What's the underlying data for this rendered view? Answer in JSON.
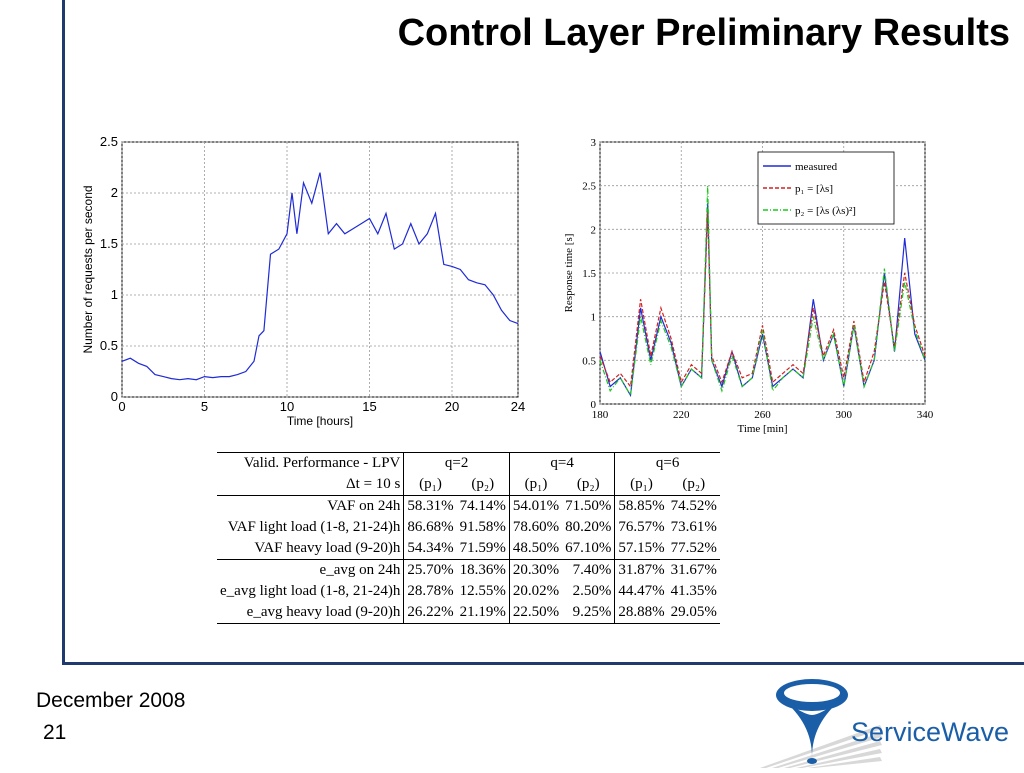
{
  "slide": {
    "title": "Control Layer Preliminary Results",
    "footer_date": "December 2008",
    "page_number": "21",
    "logo_text": "ServiceWave",
    "colors": {
      "frame": "#1f3a6e",
      "logo_blue": "#1a5ea8"
    }
  },
  "chart_data": [
    {
      "type": "line",
      "xlabel": "Time [hours]",
      "ylabel": "Number of requests per second",
      "xlim": [
        0,
        24
      ],
      "ylim": [
        0,
        2.5
      ],
      "xticks": [
        0,
        5,
        10,
        15,
        20,
        24
      ],
      "yticks": [
        0,
        0.5,
        1,
        1.5,
        2,
        2.5
      ],
      "grid": true,
      "series": [
        {
          "color": "#1f2bd6",
          "x": [
            0,
            0.5,
            1,
            1.5,
            2,
            2.5,
            3,
            3.5,
            4,
            4.5,
            5,
            5.5,
            6,
            6.5,
            7,
            7.5,
            8,
            8.3,
            8.6,
            9,
            9.5,
            10,
            10.3,
            10.6,
            11,
            11.5,
            12,
            12.5,
            13,
            13.5,
            14,
            14.5,
            15,
            15.5,
            16,
            16.5,
            17,
            17.5,
            18,
            18.5,
            19,
            19.5,
            20,
            20.5,
            21,
            21.5,
            22,
            22.5,
            23,
            23.5,
            24
          ],
          "y": [
            0.35,
            0.38,
            0.33,
            0.3,
            0.22,
            0.2,
            0.18,
            0.17,
            0.18,
            0.17,
            0.2,
            0.19,
            0.2,
            0.2,
            0.22,
            0.25,
            0.35,
            0.6,
            0.65,
            1.4,
            1.45,
            1.6,
            2.0,
            1.6,
            2.1,
            1.9,
            2.2,
            1.6,
            1.7,
            1.6,
            1.65,
            1.7,
            1.75,
            1.6,
            1.8,
            1.45,
            1.5,
            1.7,
            1.5,
            1.6,
            1.8,
            1.3,
            1.28,
            1.25,
            1.15,
            1.12,
            1.1,
            1.0,
            0.85,
            0.75,
            0.72
          ]
        }
      ]
    },
    {
      "type": "line",
      "xlabel": "Time [min]",
      "ylabel": "Response time [s]",
      "xlim": [
        180,
        340
      ],
      "ylim": [
        0,
        3
      ],
      "xticks": [
        180,
        220,
        260,
        300,
        340
      ],
      "yticks": [
        0,
        0.5,
        1,
        1.5,
        2,
        2.5,
        3
      ],
      "grid": true,
      "legend_position": "top-right",
      "series": [
        {
          "name": "measured",
          "color": "#1f2bd6",
          "x": [
            180,
            185,
            190,
            195,
            200,
            205,
            210,
            215,
            220,
            225,
            230,
            233,
            235,
            240,
            245,
            250,
            255,
            260,
            265,
            270,
            275,
            280,
            285,
            290,
            295,
            300,
            305,
            310,
            315,
            320,
            325,
            330,
            335,
            340
          ],
          "y": [
            0.6,
            0.2,
            0.3,
            0.1,
            1.1,
            0.5,
            1.0,
            0.7,
            0.2,
            0.4,
            0.3,
            2.3,
            0.5,
            0.2,
            0.6,
            0.2,
            0.3,
            0.8,
            0.2,
            0.3,
            0.4,
            0.3,
            1.2,
            0.5,
            0.8,
            0.2,
            0.9,
            0.2,
            0.5,
            1.5,
            0.6,
            1.9,
            0.8,
            0.5
          ]
        },
        {
          "name": "p₁ = [λs]",
          "color": "#d42020",
          "x": [
            180,
            185,
            190,
            195,
            200,
            205,
            210,
            215,
            220,
            225,
            230,
            233,
            235,
            240,
            245,
            250,
            255,
            260,
            265,
            270,
            275,
            280,
            285,
            290,
            295,
            300,
            305,
            310,
            315,
            320,
            325,
            330,
            335,
            340
          ],
          "y": [
            0.55,
            0.25,
            0.35,
            0.2,
            1.2,
            0.55,
            1.1,
            0.75,
            0.25,
            0.45,
            0.35,
            2.2,
            0.55,
            0.25,
            0.6,
            0.3,
            0.35,
            0.9,
            0.25,
            0.35,
            0.45,
            0.35,
            1.1,
            0.55,
            0.85,
            0.3,
            0.95,
            0.25,
            0.6,
            1.4,
            0.65,
            1.5,
            0.9,
            0.55
          ]
        },
        {
          "name": "p₂ = [λs   (λs)²]",
          "color": "#1ec81e",
          "x": [
            180,
            185,
            190,
            195,
            200,
            205,
            210,
            215,
            220,
            225,
            230,
            233,
            235,
            240,
            245,
            250,
            255,
            260,
            265,
            270,
            275,
            280,
            285,
            290,
            295,
            300,
            305,
            310,
            315,
            320,
            325,
            330,
            335,
            340
          ],
          "y": [
            0.5,
            0.15,
            0.3,
            0.1,
            1.0,
            0.45,
            0.95,
            0.65,
            0.2,
            0.4,
            0.3,
            2.5,
            0.5,
            0.15,
            0.55,
            0.2,
            0.3,
            0.85,
            0.15,
            0.3,
            0.4,
            0.3,
            1.0,
            0.5,
            0.8,
            0.2,
            0.9,
            0.2,
            0.5,
            1.55,
            0.6,
            1.4,
            0.85,
            0.5
          ]
        }
      ]
    },
    {
      "type": "table",
      "corner_header": "Valid. Performance - LPV",
      "groups": [
        "q=2",
        "q=4",
        "q=6"
      ],
      "subheaders": [
        "Δt = 10 s",
        "(p₁)",
        "(p₂)",
        "(p₁)",
        "(p₂)",
        "(p₁)",
        "(p₂)"
      ],
      "rows": [
        {
          "label": "VAF on 24h",
          "values": [
            "58.31%",
            "74.14%",
            "54.01%",
            "71.50%",
            "58.85%",
            "74.52%"
          ]
        },
        {
          "label": "VAF light load (1-8, 21-24)h",
          "values": [
            "86.68%",
            "91.58%",
            "78.60%",
            "80.20%",
            "76.57%",
            "73.61%"
          ]
        },
        {
          "label": "VAF heavy load (9-20)h",
          "values": [
            "54.34%",
            "71.59%",
            "48.50%",
            "67.10%",
            "57.15%",
            "77.52%"
          ]
        },
        {
          "label": "e_avg on 24h",
          "values": [
            "25.70%",
            "18.36%",
            "20.30%",
            "7.40%",
            "31.87%",
            "31.67%"
          ]
        },
        {
          "label": "e_avg light load (1-8, 21-24)h",
          "values": [
            "28.78%",
            "12.55%",
            "20.02%",
            "2.50%",
            "44.47%",
            "41.35%"
          ]
        },
        {
          "label": "e_avg heavy load (9-20)h",
          "values": [
            "26.22%",
            "21.19%",
            "22.50%",
            "9.25%",
            "28.88%",
            "29.05%"
          ]
        }
      ]
    }
  ]
}
